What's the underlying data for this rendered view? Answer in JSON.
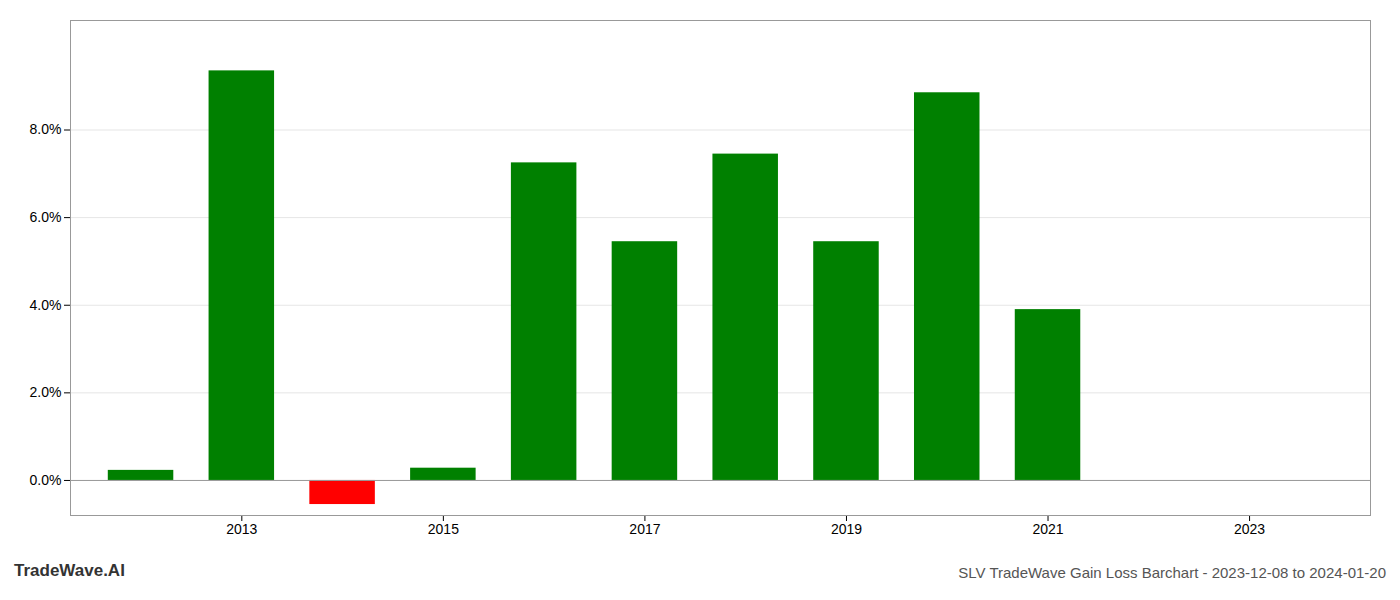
{
  "chart_data": {
    "type": "bar",
    "title": "SLV TradeWave Gain Loss Barchart - 2023-12-08 to 2024-01-20",
    "annotations": [
      "TradeWave.AI"
    ],
    "x": [
      2012,
      2013,
      2014,
      2015,
      2016,
      2017,
      2018,
      2019,
      2020,
      2021,
      2022
    ],
    "values": [
      0.23,
      9.35,
      -0.55,
      0.28,
      7.25,
      5.45,
      7.45,
      5.45,
      8.85,
      3.9,
      0.0
    ],
    "colors": [
      "#008000",
      "#008000",
      "#ff0000",
      "#008000",
      "#008000",
      "#008000",
      "#008000",
      "#008000",
      "#008000",
      "#008000",
      "#008000"
    ],
    "xlim": [
      2011.3,
      2024.2
    ],
    "xticks": [
      2013,
      2015,
      2017,
      2019,
      2021,
      2023
    ],
    "ylim": [
      -0.8,
      10.5
    ],
    "yticks": [
      {
        "value": 0.0,
        "label": "0.0%"
      },
      {
        "value": 2.0,
        "label": "2.0%"
      },
      {
        "value": 4.0,
        "label": "4.0%"
      },
      {
        "value": 6.0,
        "label": "6.0%"
      },
      {
        "value": 8.0,
        "label": "8.0%"
      }
    ],
    "grid": true
  }
}
